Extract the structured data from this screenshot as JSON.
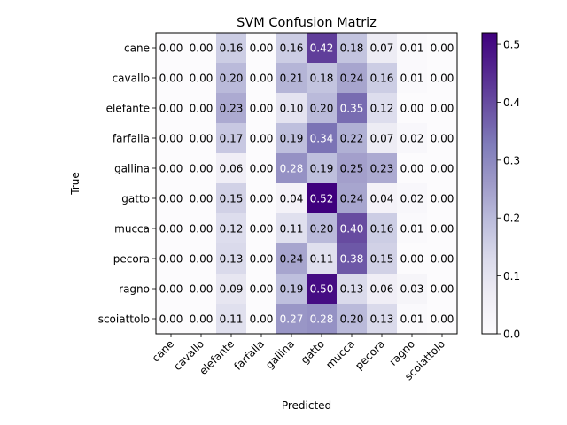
{
  "chart_data": {
    "type": "heatmap",
    "title": "SVM Confusion Matriz",
    "xlabel": "Predicted",
    "ylabel": "True",
    "colormap": "Purples",
    "color_range": [
      0,
      0.52
    ],
    "x_categories": [
      "cane",
      "cavallo",
      "elefante",
      "farfalla",
      "gallina",
      "gatto",
      "mucca",
      "pecora",
      "ragno",
      "scoiattolo"
    ],
    "y_categories": [
      "cane",
      "cavallo",
      "elefante",
      "farfalla",
      "gallina",
      "gatto",
      "mucca",
      "pecora",
      "ragno",
      "scoiattolo"
    ],
    "values": [
      [
        0.0,
        0.0,
        0.16,
        0.0,
        0.16,
        0.42,
        0.18,
        0.07,
        0.01,
        0.0
      ],
      [
        0.0,
        0.0,
        0.2,
        0.0,
        0.21,
        0.18,
        0.24,
        0.16,
        0.01,
        0.0
      ],
      [
        0.0,
        0.0,
        0.23,
        0.0,
        0.1,
        0.2,
        0.35,
        0.12,
        0.0,
        0.0
      ],
      [
        0.0,
        0.0,
        0.17,
        0.0,
        0.19,
        0.34,
        0.22,
        0.07,
        0.02,
        0.0
      ],
      [
        0.0,
        0.0,
        0.06,
        0.0,
        0.28,
        0.19,
        0.25,
        0.23,
        0.0,
        0.0
      ],
      [
        0.0,
        0.0,
        0.15,
        0.0,
        0.04,
        0.52,
        0.24,
        0.04,
        0.02,
        0.0
      ],
      [
        0.0,
        0.0,
        0.12,
        0.0,
        0.11,
        0.2,
        0.4,
        0.16,
        0.01,
        0.0
      ],
      [
        0.0,
        0.0,
        0.13,
        0.0,
        0.24,
        0.11,
        0.38,
        0.15,
        0.0,
        0.0
      ],
      [
        0.0,
        0.0,
        0.09,
        0.0,
        0.19,
        0.5,
        0.13,
        0.06,
        0.03,
        0.0
      ],
      [
        0.0,
        0.0,
        0.11,
        0.0,
        0.27,
        0.28,
        0.2,
        0.13,
        0.01,
        0.0
      ]
    ],
    "colorbar_ticks": [
      "0.0",
      "0.1",
      "0.2",
      "0.3",
      "0.4",
      "0.5"
    ],
    "colorbar_tick_values": [
      0,
      0.1,
      0.2,
      0.3,
      0.4,
      0.5
    ],
    "grid": false
  }
}
